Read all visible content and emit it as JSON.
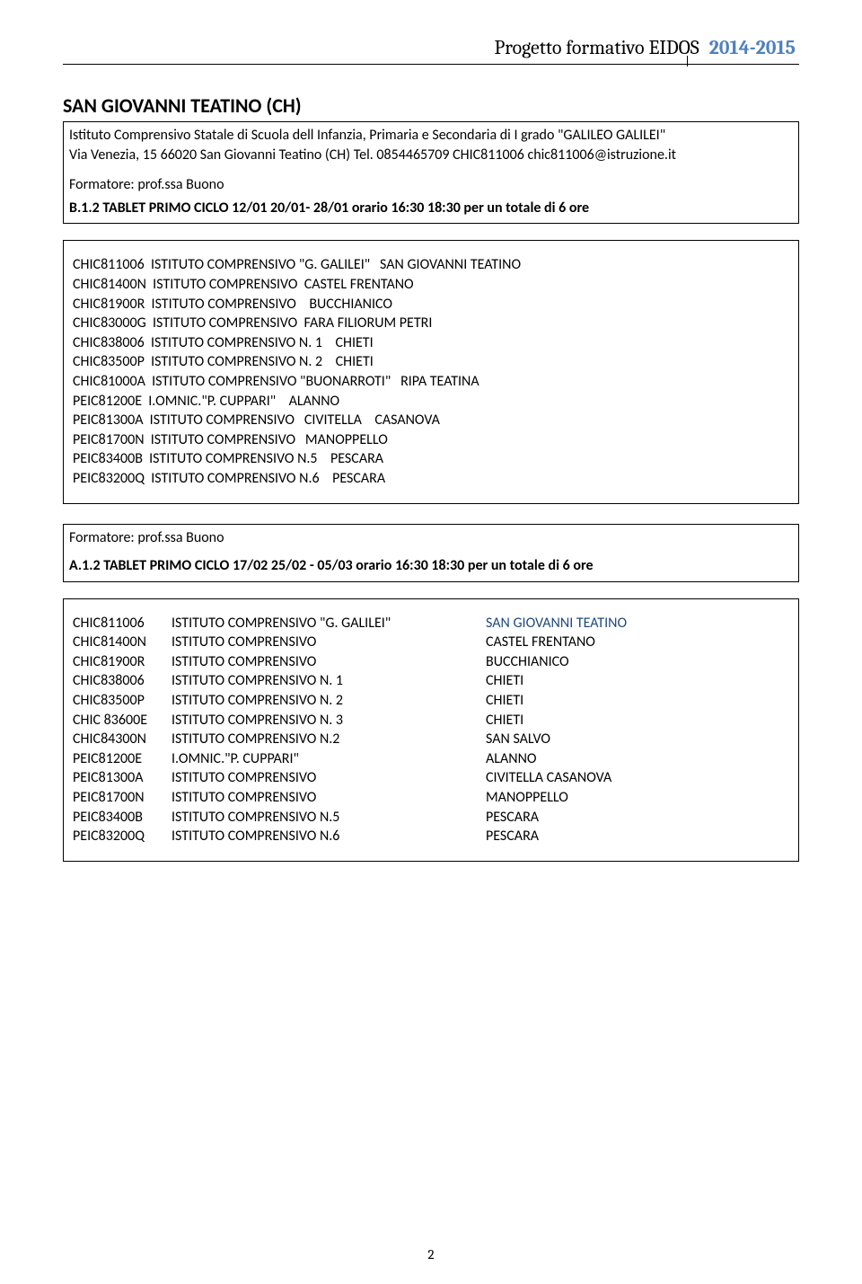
{
  "header": {
    "title": "Progetto formativo EIDOS",
    "year": "2014-2015"
  },
  "section_title": "SAN GIOVANNI TEATINO (CH)",
  "institute": {
    "line1": "Istituto Comprensivo Statale di Scuola dell Infanzia, Primaria e Secondaria di I grado \"GALILEO GALILEI\"",
    "line2": "Via Venezia, 15 66020 San Giovanni Teatino (CH) Tel. 0854465709 CHIC811006 chic811006@istruzione.it"
  },
  "formatore_label": "Formatore: prof.ssa Buono",
  "course_b": "B.1.2   TABLET   PRIMO CICLO   12/01   20/01- 28/01   orario 16:30  18:30 per un totale di 6 ore",
  "list_b": [
    "CHIC811006  ISTITUTO COMPRENSIVO \"G. GALILEI\"   SAN GIOVANNI TEATINO",
    "CHIC81400N  ISTITUTO COMPRENSIVO  CASTEL FRENTANO",
    "CHIC81900R  ISTITUTO COMPRENSIVO    BUCCHIANICO",
    "CHIC83000G  ISTITUTO COMPRENSIVO  FARA FILIORUM PETRI",
    "CHIC838006  ISTITUTO COMPRENSIVO N. 1    CHIETI",
    "CHIC83500P  ISTITUTO COMPRENSIVO N. 2    CHIETI",
    "CHIC81000A  ISTITUTO COMPRENSIVO \"BUONARROTI\"   RIPA TEATINA",
    "PEIC81200E  I.OMNIC.\"P. CUPPARI\"    ALANNO",
    "PEIC81300A  ISTITUTO COMPRENSIVO   CIVITELLA    CASANOVA",
    "PEIC81700N  ISTITUTO COMPRENSIVO   MANOPPELLO",
    "PEIC83400B  ISTITUTO COMPRENSIVO N.5    PESCARA",
    "PEIC83200Q  ISTITUTO COMPRENSIVO N.6    PESCARA"
  ],
  "course_a": "A.1.2   TABLET   PRIMO CICLO   17/02   25/02 - 05/03 orario 16:30  18:30 per un totale di 6 ore",
  "list_a": [
    {
      "code": "CHIC811006",
      "desc": "ISTITUTO COMPRENSIVO \"G. GALILEI\"",
      "loc": "SAN GIOVANNI TEATINO",
      "loc_color": "blue"
    },
    {
      "code": "CHIC81400N",
      "desc": "ISTITUTO COMPRENSIVO",
      "loc": "CASTEL FRENTANO"
    },
    {
      "code": "CHIC81900R",
      "desc": "ISTITUTO COMPRENSIVO",
      "loc": " BUCCHIANICO"
    },
    {
      "code": "CHIC838006",
      "desc": "ISTITUTO COMPRENSIVO N. 1",
      "loc": "CHIETI"
    },
    {
      "code": "CHIC83500P",
      "desc": "ISTITUTO COMPRENSIVO N. 2",
      "loc": "CHIETI"
    },
    {
      "code": "CHIC 83600E",
      "desc": "ISTITUTO COMPRENSIVO N. 3",
      "loc": "CHIETI"
    },
    {
      "code": "CHIC84300N",
      "desc": "ISTITUTO COMPRENSIVO N.2",
      "loc": "SAN SALVO"
    },
    {
      "code": "PEIC81200E",
      "desc": "I.OMNIC.\"P. CUPPARI\"",
      "loc": " ALANNO"
    },
    {
      "code": "PEIC81300A",
      "desc": "ISTITUTO COMPRENSIVO",
      "loc": "CIVITELLA    CASANOVA"
    },
    {
      "code": "PEIC81700N",
      "desc": "ISTITUTO COMPRENSIVO",
      "loc": "MANOPPELLO"
    },
    {
      "code": "PEIC83400B",
      "desc": "ISTITUTO COMPRENSIVO N.5",
      "loc": "PESCARA"
    },
    {
      "code": "PEIC83200Q",
      "desc": "ISTITUTO COMPRENSIVO N.6",
      "loc": " PESCARA"
    }
  ],
  "page_number": "2"
}
